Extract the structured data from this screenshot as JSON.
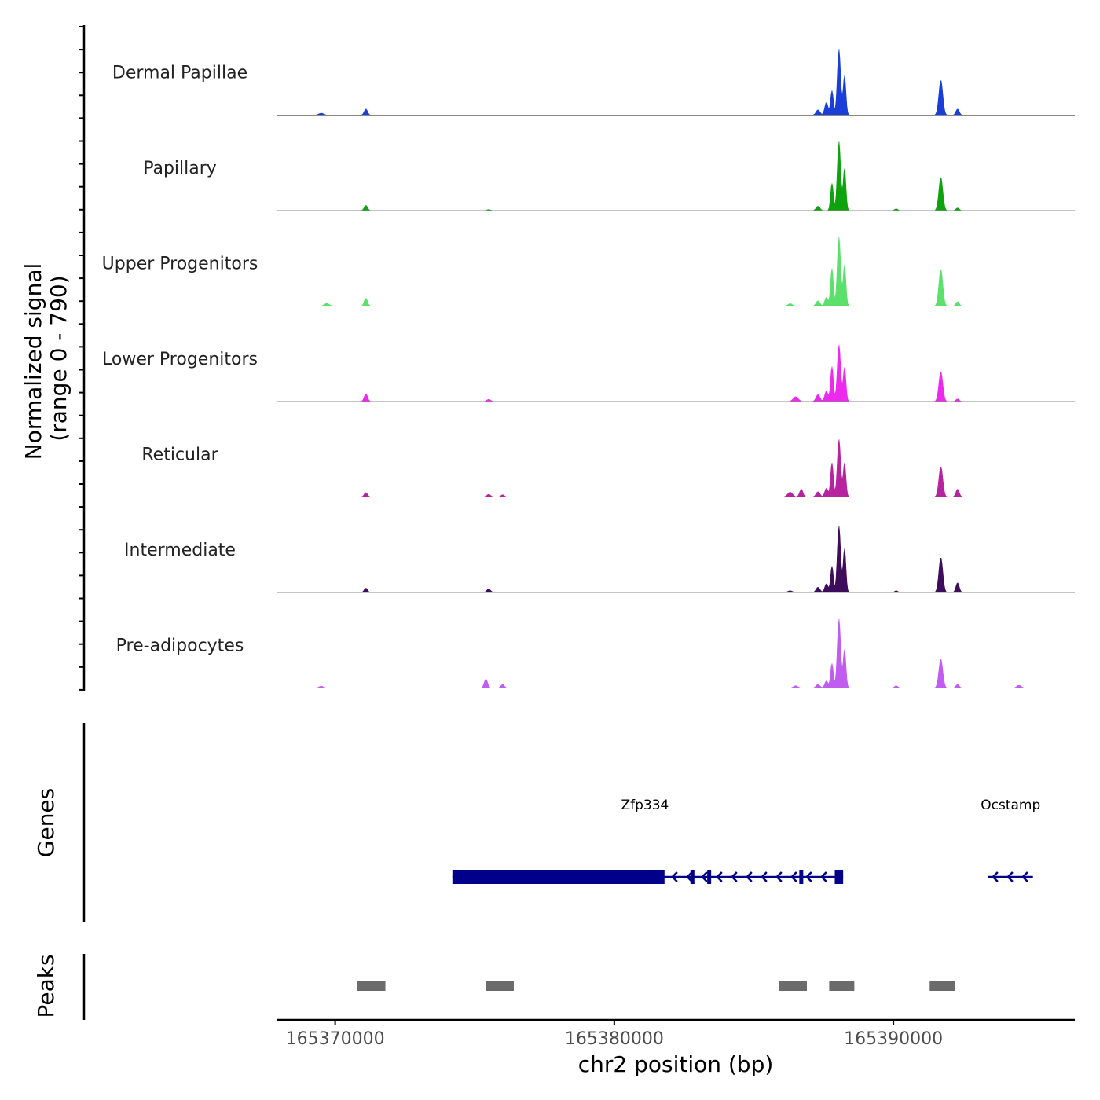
{
  "chart_data": {
    "type": "area",
    "title": "",
    "xlabel": "chr2 position (bp)",
    "ylabel": "Normalized signal",
    "ylabel_range": "(range 0 - 790)",
    "ylim": [
      0,
      790
    ],
    "xlim": [
      165367900,
      165396500
    ],
    "x_ticks": [
      165370000,
      165380000,
      165390000
    ],
    "x_tick_labels": [
      "165370000",
      "165380000",
      "165390000"
    ],
    "series": [
      {
        "name": "Dermal Papillae",
        "color": "#1a3fd8",
        "peaks": [
          [
            165369500,
            22,
            90
          ],
          [
            165371100,
            70,
            60
          ],
          [
            165387300,
            60,
            70
          ],
          [
            165387600,
            145,
            60
          ],
          [
            165387800,
            280,
            50
          ],
          [
            165388050,
            750,
            60
          ],
          [
            165388250,
            450,
            50
          ],
          [
            165391700,
            400,
            70
          ],
          [
            165392300,
            70,
            60
          ]
        ]
      },
      {
        "name": "Papillary",
        "color": "#0ea30e",
        "peaks": [
          [
            165371100,
            60,
            60
          ],
          [
            165375500,
            12,
            70
          ],
          [
            165387300,
            50,
            70
          ],
          [
            165387800,
            310,
            50
          ],
          [
            165388050,
            790,
            60
          ],
          [
            165388250,
            480,
            50
          ],
          [
            165390100,
            20,
            60
          ],
          [
            165391700,
            380,
            70
          ],
          [
            165392300,
            30,
            60
          ]
        ]
      },
      {
        "name": "Upper Progenitors",
        "color": "#5ce06c",
        "peaks": [
          [
            165369700,
            30,
            90
          ],
          [
            165371100,
            90,
            60
          ],
          [
            165386300,
            28,
            80
          ],
          [
            165387300,
            60,
            70
          ],
          [
            165387600,
            100,
            60
          ],
          [
            165387800,
            430,
            50
          ],
          [
            165388050,
            790,
            60
          ],
          [
            165388250,
            470,
            50
          ],
          [
            165391700,
            420,
            70
          ],
          [
            165392300,
            50,
            60
          ]
        ]
      },
      {
        "name": "Lower Progenitors",
        "color": "#ec29ec",
        "peaks": [
          [
            165371100,
            90,
            60
          ],
          [
            165375500,
            25,
            70
          ],
          [
            165386500,
            55,
            90
          ],
          [
            165387300,
            80,
            70
          ],
          [
            165387600,
            120,
            60
          ],
          [
            165387800,
            400,
            50
          ],
          [
            165388050,
            650,
            60
          ],
          [
            165388250,
            390,
            50
          ],
          [
            165391700,
            340,
            70
          ],
          [
            165392300,
            30,
            60
          ]
        ]
      },
      {
        "name": "Reticular",
        "color": "#b7239f",
        "peaks": [
          [
            165371100,
            50,
            60
          ],
          [
            165375500,
            30,
            70
          ],
          [
            165376000,
            25,
            60
          ],
          [
            165386300,
            55,
            90
          ],
          [
            165386700,
            90,
            60
          ],
          [
            165387300,
            60,
            70
          ],
          [
            165387600,
            100,
            60
          ],
          [
            165387800,
            390,
            50
          ],
          [
            165388050,
            660,
            60
          ],
          [
            165388250,
            390,
            50
          ],
          [
            165391700,
            350,
            70
          ],
          [
            165392300,
            90,
            60
          ]
        ]
      },
      {
        "name": "Intermediate",
        "color": "#3d0d5c",
        "peaks": [
          [
            165371100,
            50,
            60
          ],
          [
            165375500,
            40,
            70
          ],
          [
            165386300,
            20,
            80
          ],
          [
            165387300,
            60,
            70
          ],
          [
            165387600,
            100,
            60
          ],
          [
            165387800,
            300,
            50
          ],
          [
            165388050,
            760,
            60
          ],
          [
            165388250,
            500,
            50
          ],
          [
            165390100,
            20,
            60
          ],
          [
            165391700,
            400,
            70
          ],
          [
            165392300,
            110,
            60
          ]
        ]
      },
      {
        "name": "Pre-adipocytes",
        "color": "#c05cf0",
        "peaks": [
          [
            165369500,
            20,
            80
          ],
          [
            165375400,
            100,
            60
          ],
          [
            165376000,
            40,
            60
          ],
          [
            165386500,
            25,
            80
          ],
          [
            165387300,
            40,
            70
          ],
          [
            165387600,
            80,
            60
          ],
          [
            165387800,
            280,
            50
          ],
          [
            165388050,
            790,
            60
          ],
          [
            165388250,
            440,
            50
          ],
          [
            165390100,
            25,
            60
          ],
          [
            165391700,
            330,
            70
          ],
          [
            165392300,
            40,
            60
          ],
          [
            165394500,
            30,
            80
          ]
        ]
      }
    ],
    "genes_track": {
      "label": "Genes",
      "color": "#00008b",
      "genes": [
        {
          "name": "Zfp334",
          "start": 165374200,
          "end": 165388200,
          "strand": "-",
          "thick_blocks": [
            [
              165374200,
              165381800
            ],
            [
              165387900,
              165388200
            ]
          ],
          "exon_marks": [
            165382800,
            165383400,
            165386700
          ],
          "label_x": 165381100
        },
        {
          "name": "Ocstamp",
          "start": 165393400,
          "end": 165395000,
          "strand": "-",
          "thick_blocks": [],
          "exon_marks": [],
          "label_x": 165394200
        }
      ]
    },
    "peaks_track": {
      "label": "Peaks",
      "color": "#6b6b6b",
      "intervals": [
        [
          165370800,
          165371800
        ],
        [
          165375400,
          165376400
        ],
        [
          165385900,
          165386900
        ],
        [
          165387700,
          165388600
        ],
        [
          165391300,
          165392200
        ]
      ]
    }
  }
}
